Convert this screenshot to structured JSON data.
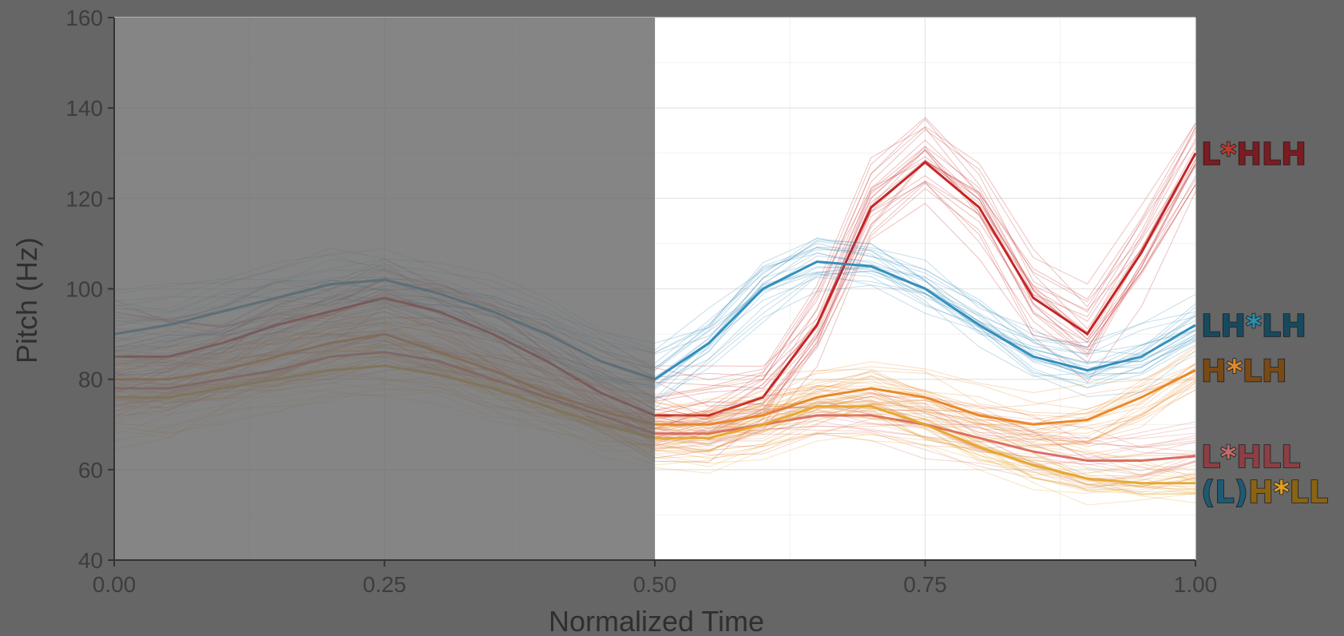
{
  "chart_data": {
    "type": "line",
    "xlabel": "Normalized Time",
    "ylabel": "Pitch (Hz)",
    "xlim": [
      0.0,
      1.0
    ],
    "ylim": [
      40,
      160
    ],
    "x_ticks": [
      "0.00",
      "0.25",
      "0.50",
      "0.75",
      "1.00"
    ],
    "y_ticks": [
      "40",
      "60",
      "80",
      "100",
      "120",
      "140",
      "160"
    ],
    "grid": true,
    "dimmed_region": {
      "x_from": 0.0,
      "x_to": 0.5
    },
    "x": [
      0.0,
      0.05,
      0.1,
      0.15,
      0.2,
      0.25,
      0.3,
      0.35,
      0.4,
      0.45,
      0.5,
      0.55,
      0.6,
      0.65,
      0.7,
      0.75,
      0.8,
      0.85,
      0.9,
      0.95,
      1.0
    ],
    "series": [
      {
        "name": "L*HLH",
        "label_parts": [
          {
            "text": "L",
            "color": "#7a1c22"
          },
          {
            "text": "*",
            "color": "#c0392b"
          },
          {
            "text": "HLH",
            "color": "#7a1c22"
          }
        ],
        "line_color": "#c21b1b",
        "values": [
          85,
          85,
          88,
          92,
          95,
          98,
          95,
          90,
          84,
          77,
          72,
          72,
          76,
          92,
          118,
          128,
          118,
          98,
          90,
          108,
          130
        ]
      },
      {
        "name": "LH*LH",
        "label_parts": [
          {
            "text": "LH",
            "color": "#184a5e"
          },
          {
            "text": "*",
            "color": "#2a8fb0"
          },
          {
            "text": "LH",
            "color": "#184a5e"
          }
        ],
        "line_color": "#2b8ab8",
        "values": [
          90,
          92,
          95,
          98,
          101,
          102,
          99,
          95,
          90,
          84,
          80,
          88,
          100,
          106,
          105,
          100,
          92,
          85,
          82,
          85,
          92
        ]
      },
      {
        "name": "H*LH",
        "label_parts": [
          {
            "text": "H",
            "color": "#7a4a15"
          },
          {
            "text": "*",
            "color": "#e0892a"
          },
          {
            "text": "LH",
            "color": "#7a4a15"
          }
        ],
        "line_color": "#e8841f",
        "values": [
          80,
          80,
          82,
          85,
          88,
          90,
          86,
          82,
          77,
          73,
          70,
          70,
          72,
          76,
          78,
          76,
          72,
          70,
          71,
          76,
          82
        ]
      },
      {
        "name": "L*HLL",
        "label_parts": [
          {
            "text": "L",
            "color": "#8c3f44"
          },
          {
            "text": "*",
            "color": "#c56b6b"
          },
          {
            "text": "HLL",
            "color": "#8c3f44"
          }
        ],
        "line_color": "#d9675f",
        "values": [
          78,
          78,
          80,
          82,
          85,
          86,
          84,
          80,
          76,
          72,
          68,
          68,
          70,
          72,
          72,
          70,
          67,
          64,
          62,
          62,
          63
        ]
      },
      {
        "name": "(L)H*LL",
        "label_parts": [
          {
            "text": "(L)",
            "color": "#1d5a73"
          },
          {
            "text": "H",
            "color": "#8a6414"
          },
          {
            "text": "*",
            "color": "#e0a020"
          },
          {
            "text": "LL",
            "color": "#8a6414"
          }
        ],
        "line_color": "#e6a52a",
        "values": [
          76,
          76,
          78,
          80,
          82,
          83,
          81,
          78,
          74,
          70,
          67,
          67,
          70,
          74,
          74,
          70,
          65,
          61,
          58,
          57,
          57
        ]
      }
    ]
  }
}
